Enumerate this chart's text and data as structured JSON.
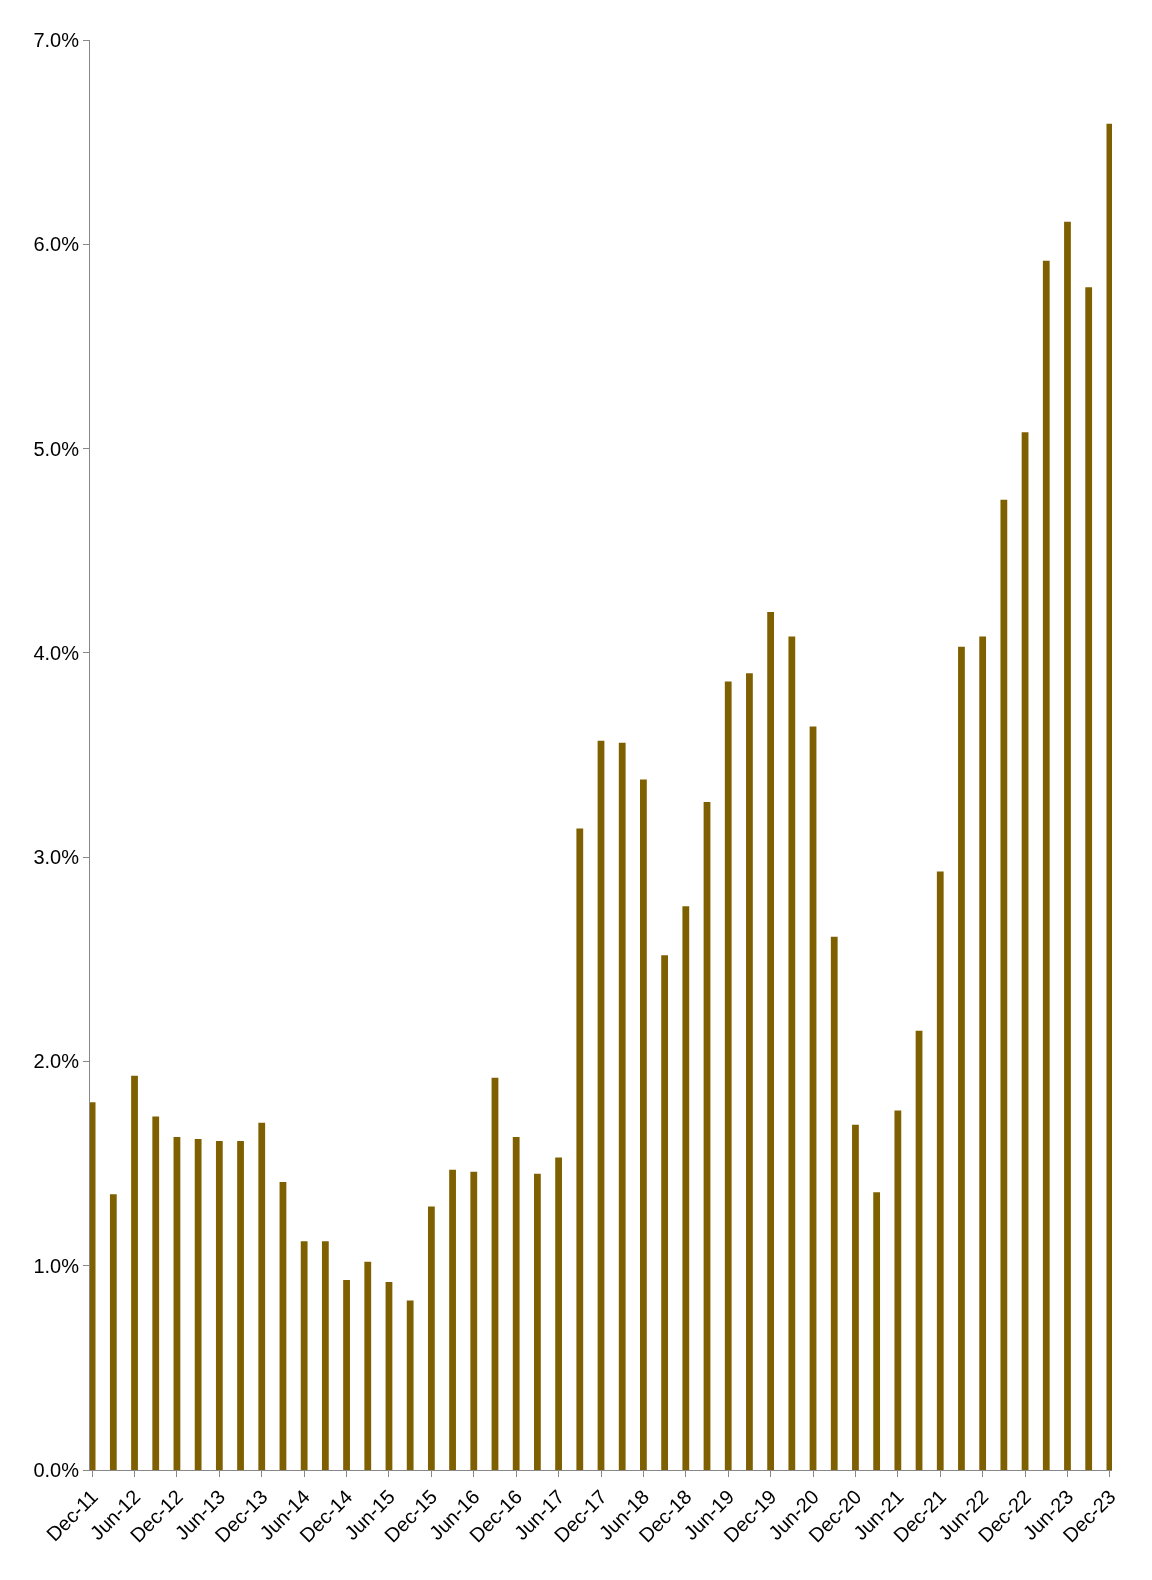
{
  "chart_data": {
    "type": "bar",
    "categories": [
      "Dec-11",
      null,
      "Jun-12",
      null,
      "Dec-12",
      null,
      "Jun-13",
      null,
      "Dec-13",
      null,
      "Jun-14",
      null,
      "Dec-14",
      null,
      "Jun-15",
      null,
      "Dec-15",
      null,
      "Jun-16",
      null,
      "Dec-16",
      null,
      "Jun-17",
      null,
      "Dec-17",
      null,
      "Jun-18",
      null,
      "Dec-18",
      null,
      "Jun-19",
      null,
      "Dec-19",
      null,
      "Jun-20",
      null,
      "Dec-20",
      null,
      "Jun-21",
      null,
      "Dec-21",
      null,
      "Jun-22",
      null,
      "Dec-22",
      null,
      "Jun-23",
      null,
      "Dec-23"
    ],
    "values": [
      1.8,
      1.35,
      1.93,
      1.73,
      1.63,
      1.62,
      1.61,
      1.61,
      1.7,
      1.41,
      1.12,
      1.12,
      0.93,
      1.02,
      0.92,
      0.83,
      1.29,
      1.47,
      1.46,
      1.92,
      1.63,
      1.45,
      1.53,
      3.14,
      3.57,
      3.56,
      3.38,
      2.52,
      2.76,
      3.27,
      3.86,
      3.9,
      4.2,
      4.08,
      3.64,
      2.61,
      1.69,
      1.36,
      1.76,
      2.15,
      2.93,
      4.03,
      4.08,
      4.75,
      5.08,
      5.92,
      6.11,
      5.79,
      6.59
    ],
    "color": "#7f6000",
    "ylim": [
      0,
      7
    ],
    "yticks": [
      {
        "value": 0,
        "label": "0.0%"
      },
      {
        "value": 1,
        "label": "1.0%"
      },
      {
        "value": 2,
        "label": "2.0%"
      },
      {
        "value": 3,
        "label": "3.0%"
      },
      {
        "value": 4,
        "label": "4.0%"
      },
      {
        "value": 5,
        "label": "5.0%"
      },
      {
        "value": 6,
        "label": "6.0%"
      },
      {
        "value": 7,
        "label": "7.0%"
      }
    ],
    "grid": false,
    "legend": false
  }
}
